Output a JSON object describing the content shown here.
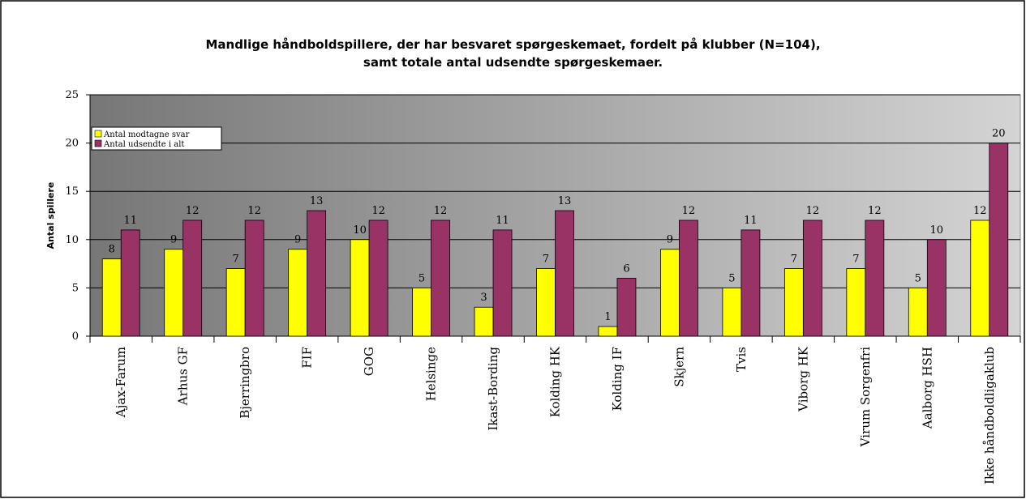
{
  "chart_data": {
    "type": "bar",
    "title": "Mandlige håndboldspillere, der har besvaret spørgeskemaet, fordelt på klubber (N=104),\nsamt totale antal udsendte spørgeskemaer.",
    "y_label": "Antal spillere",
    "categories": [
      "Ajax-Farum",
      "Arhus GF",
      "Bjerringbro",
      "FIF",
      "GOG",
      "Helsinge",
      "Ikast-Bording",
      "Kolding HK",
      "Kolding IF",
      "Skjern",
      "Tvis",
      "Viborg HK",
      "Virum Sorgenfri",
      "Aalborg HSH",
      "Ikke håndboldligaklub"
    ],
    "series": [
      {
        "name": "Antal modtagne svar",
        "color": "#ffff00",
        "values": [
          8,
          9,
          7,
          9,
          10,
          5,
          3,
          7,
          1,
          9,
          5,
          7,
          7,
          5,
          12
        ]
      },
      {
        "name": "Antal udsendte i alt",
        "color": "#993366",
        "values": [
          11,
          12,
          12,
          13,
          12,
          12,
          11,
          13,
          6,
          12,
          11,
          12,
          12,
          10,
          20
        ]
      }
    ],
    "ylim": [
      0,
      25
    ],
    "yticks": [
      0,
      5,
      10,
      15,
      20,
      25
    ],
    "grid": true,
    "legend": "top-left"
  }
}
